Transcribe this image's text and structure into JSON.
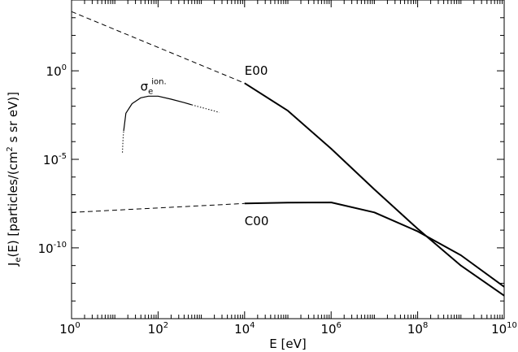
{
  "chart_data": {
    "type": "line",
    "xscale": "log",
    "yscale": "log",
    "xlim": [
      1,
      10000000000
    ],
    "ylim": [
      1e-14,
      10000.0
    ],
    "xlabel": "E [eV]",
    "ylabel": {
      "prefix": "J",
      "sub": "e",
      "middle": "(E) [particles/(cm",
      "sup": "2",
      "suffix": " s sr eV)]"
    },
    "x_ticks": [
      {
        "value": 1,
        "base": "10",
        "exp": "0"
      },
      {
        "value": 100,
        "base": "10",
        "exp": "2"
      },
      {
        "value": 10000,
        "base": "10",
        "exp": "4"
      },
      {
        "value": 1000000,
        "base": "10",
        "exp": "6"
      },
      {
        "value": 100000000,
        "base": "10",
        "exp": "8"
      },
      {
        "value": 10000000000,
        "base": "10",
        "exp": "10"
      }
    ],
    "y_ticks": [
      {
        "value": 1,
        "base": "10",
        "exp": "0"
      },
      {
        "value": 1e-05,
        "base": "10",
        "exp": "-5"
      },
      {
        "value": 1e-10,
        "base": "10",
        "exp": "-10"
      }
    ],
    "annotations": [
      {
        "text": "E00",
        "x": 10000,
        "y": 1
      },
      {
        "text": "C00",
        "x": 10000,
        "y": 3.2e-09
      },
      {
        "text": "σ",
        "sup": "ion.",
        "sub": "e",
        "x": 55,
        "y": 0.04
      }
    ],
    "series": [
      {
        "label_ref": "E00",
        "style": "dashed",
        "x": [
          1,
          10000
        ],
        "y": [
          2200.0,
          0.2
        ]
      },
      {
        "label_ref": "E00",
        "style": "solid",
        "x": [
          10000,
          100000,
          1000000,
          10000000,
          100000000,
          1000000000,
          10000000000
        ],
        "y": [
          0.2,
          0.0056,
          4e-05,
          2e-07,
          1.2e-09,
          1e-11,
          2e-13
        ]
      },
      {
        "label_ref": "C00",
        "style": "dashed",
        "x": [
          1,
          10000
        ],
        "y": [
          1e-08,
          3.2e-08
        ]
      },
      {
        "label_ref": "C00",
        "style": "solid",
        "x": [
          10000,
          100000,
          1000000,
          10000000,
          100000000,
          1000000000,
          10000000000
        ],
        "y": [
          3.2e-08,
          3.6e-08,
          3.7e-08,
          1e-08,
          8.5e-10,
          3.8e-11,
          6.3e-13
        ]
      },
      {
        "label_ref": "σ_e ion.",
        "style": "dotted",
        "x": [
          15,
          15.5,
          16
        ],
        "y": [
          2.4e-05,
          0.00015,
          0.0004
        ]
      },
      {
        "label_ref": "σ_e ion.",
        "style": "solid",
        "x": [
          16,
          18,
          25,
          40,
          60,
          100,
          200,
          400,
          600
        ],
        "y": [
          0.0004,
          0.004,
          0.014,
          0.03,
          0.037,
          0.037,
          0.025,
          0.016,
          0.012
        ]
      },
      {
        "label_ref": "σ_e ion.",
        "style": "dotted",
        "x": [
          600,
          1000,
          2000,
          2600
        ],
        "y": [
          0.012,
          0.0085,
          0.0054,
          0.0044
        ]
      }
    ]
  }
}
